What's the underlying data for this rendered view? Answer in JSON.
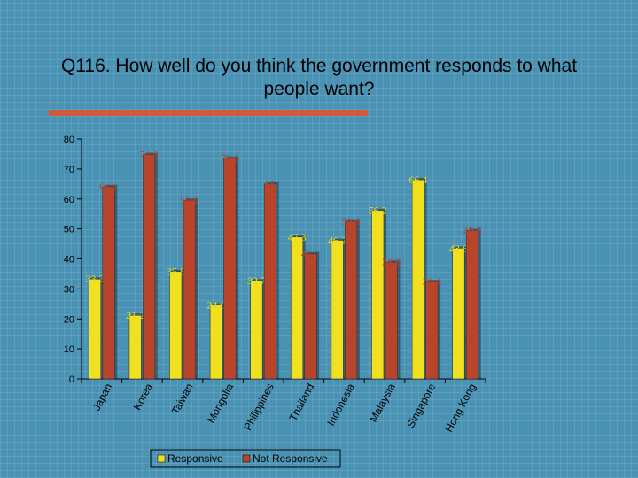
{
  "slide": {
    "title": "Q116. How well do you think the government responds to what people want?"
  },
  "colors": {
    "responsive": "#f0e020",
    "not_responsive": "#b8442c",
    "responsive_label": "#e8d818",
    "not_responsive_label": "#c0402a",
    "plot_background": "#4a92b4"
  },
  "chart_data": {
    "type": "bar",
    "title": "",
    "xlabel": "",
    "ylabel": "",
    "ylim": [
      0,
      80
    ],
    "yticks": [
      0,
      10,
      20,
      30,
      40,
      50,
      60,
      70,
      80
    ],
    "grid": false,
    "legend_position": "bottom",
    "categories": [
      "Japan",
      "Korea",
      "Taiwan",
      "Mongolia",
      "Philippines",
      "Thailand",
      "Indonesia",
      "Malaysia",
      "Singapore",
      "Hong Kong"
    ],
    "series": [
      {
        "name": "Responsive",
        "values": [
          33.3,
          21.2,
          35.8,
          24.6,
          32.7,
          47.3,
          46.2,
          56.2,
          66.4,
          43.6
        ],
        "labels": [
          "33.3",
          "21.2",
          "35.8",
          "24.6",
          "32.7",
          "47.3",
          "46.2",
          "56.2",
          "66.4",
          "43.6"
        ]
      },
      {
        "name": "Not Responsive",
        "values": [
          64.1,
          74.8,
          59.6,
          73.6,
          65,
          41.7,
          52.6,
          38.9,
          32.4,
          49.5
        ],
        "labels": [
          "64.1",
          "74.8",
          "59.6",
          "73.6",
          "65",
          "41.7",
          "52.6",
          "38.9",
          "32.4",
          "49.5"
        ]
      }
    ]
  }
}
